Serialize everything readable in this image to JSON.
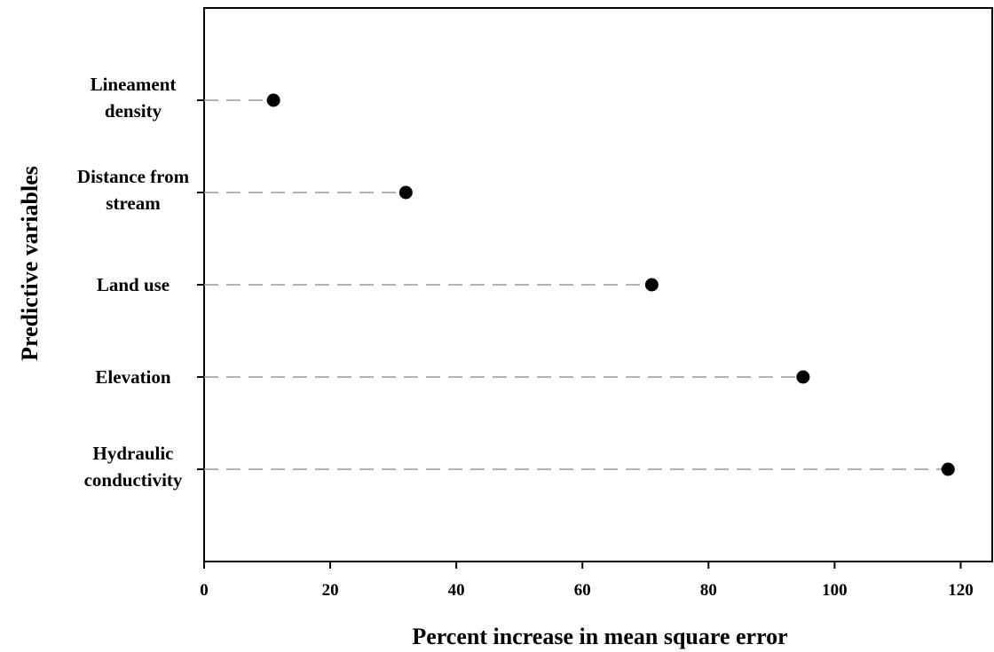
{
  "chart_data": {
    "type": "scatter",
    "title": "",
    "xlabel": "Percent increase in mean square error",
    "ylabel": "Predictive variables",
    "xlim": [
      0,
      125
    ],
    "xticks": [
      0,
      20,
      40,
      60,
      80,
      100,
      120
    ],
    "grid": false,
    "categories": [
      [
        "Lineament",
        "density"
      ],
      [
        "Distance from",
        "stream"
      ],
      [
        "Land use"
      ],
      [
        "Elevation"
      ],
      [
        "Hydraulic",
        "conductivity"
      ]
    ],
    "values": [
      11,
      32,
      71,
      95,
      118
    ],
    "colors": {
      "marker": "#000000",
      "leader": "#9a9a9a",
      "axis": "#000000"
    }
  }
}
